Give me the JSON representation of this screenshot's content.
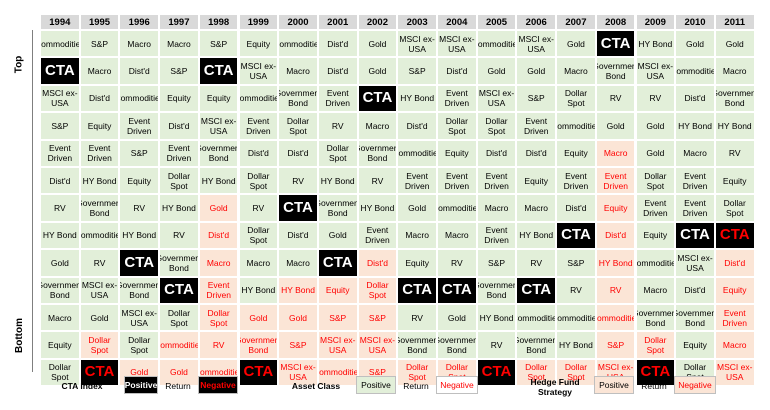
{
  "side_labels": {
    "top": "Top",
    "bottom": "Bottom"
  },
  "legend": {
    "cta_index": {
      "title": "CTA Index",
      "positive": "Positive",
      "return": "Return",
      "negative": "Negative"
    },
    "asset_class": {
      "title": "Asset Class",
      "positive": "Positive",
      "return": "Return",
      "negative": "Negative"
    },
    "hedge_fund": {
      "title": "Hedge Fund Strategy",
      "positive": "Positive",
      "return": "Return",
      "negative": "Negative"
    }
  },
  "colors": {
    "positive_bg": "#e2efd9",
    "negative_bg": "#fbe5d6",
    "negative_text": "#ff0000",
    "cta_bg": "#000000",
    "header_bg": "#d9d9d9"
  },
  "chart_data": {
    "type": "table",
    "years": [
      "1994",
      "1995",
      "1996",
      "1997",
      "1998",
      "1999",
      "2000",
      "2001",
      "2002",
      "2003",
      "2004",
      "2005",
      "2006",
      "2007",
      "2008",
      "2009",
      "2010",
      "2011"
    ],
    "codes": {
      "p": "positive return",
      "n": "negative return",
      "cp": "CTA positive",
      "cn": "CTA negative"
    },
    "columns": [
      [
        [
          "Commodities",
          "p"
        ],
        [
          "CTA",
          "cp"
        ],
        [
          "MSCI ex-USA",
          "p"
        ],
        [
          "S&P",
          "p"
        ],
        [
          "Event Driven",
          "p"
        ],
        [
          "Dist'd",
          "p"
        ],
        [
          "RV",
          "p"
        ],
        [
          "HY Bond",
          "p"
        ],
        [
          "Gold",
          "p"
        ],
        [
          "Government Bond",
          "p"
        ],
        [
          "Macro",
          "p"
        ],
        [
          "Equity",
          "p"
        ],
        [
          "Dollar Spot",
          "p"
        ]
      ],
      [
        [
          "S&P",
          "p"
        ],
        [
          "Macro",
          "p"
        ],
        [
          "Dist'd",
          "p"
        ],
        [
          "Equity",
          "p"
        ],
        [
          "Event Driven",
          "p"
        ],
        [
          "HY Bond",
          "p"
        ],
        [
          "Government Bond",
          "p"
        ],
        [
          "Commodities",
          "p"
        ],
        [
          "RV",
          "p"
        ],
        [
          "MSCI ex-USA",
          "p"
        ],
        [
          "Gold",
          "p"
        ],
        [
          "Dollar Spot",
          "n"
        ],
        [
          "CTA",
          "cn"
        ]
      ],
      [
        [
          "Macro",
          "p"
        ],
        [
          "Dist'd",
          "p"
        ],
        [
          "Commodities",
          "p"
        ],
        [
          "Event Driven",
          "p"
        ],
        [
          "S&P",
          "p"
        ],
        [
          "Equity",
          "p"
        ],
        [
          "RV",
          "p"
        ],
        [
          "HY Bond",
          "p"
        ],
        [
          "CTA",
          "cp"
        ],
        [
          "Government Bond",
          "p"
        ],
        [
          "MSCI ex-USA",
          "p"
        ],
        [
          "Dollar Spot",
          "p"
        ],
        [
          "Gold",
          "n"
        ]
      ],
      [
        [
          "Macro",
          "p"
        ],
        [
          "S&P",
          "p"
        ],
        [
          "Equity",
          "p"
        ],
        [
          "Dist'd",
          "p"
        ],
        [
          "Event Driven",
          "p"
        ],
        [
          "Dollar Spot",
          "p"
        ],
        [
          "HY Bond",
          "p"
        ],
        [
          "RV",
          "p"
        ],
        [
          "Government Bond",
          "p"
        ],
        [
          "CTA",
          "cp"
        ],
        [
          "Dollar Spot",
          "p"
        ],
        [
          "Commodities",
          "n"
        ],
        [
          "Gold",
          "n"
        ]
      ],
      [
        [
          "S&P",
          "p"
        ],
        [
          "CTA",
          "cp"
        ],
        [
          "Equity",
          "p"
        ],
        [
          "MSCI ex-USA",
          "p"
        ],
        [
          "Government Bond",
          "p"
        ],
        [
          "HY Bond",
          "p"
        ],
        [
          "Gold",
          "n"
        ],
        [
          "Dist'd",
          "n"
        ],
        [
          "Macro",
          "n"
        ],
        [
          "Event Driven",
          "n"
        ],
        [
          "Dollar Spot",
          "n"
        ],
        [
          "RV",
          "n"
        ],
        [
          "Commodities",
          "n"
        ]
      ],
      [
        [
          "Equity",
          "p"
        ],
        [
          "MSCI ex-USA",
          "p"
        ],
        [
          "Commodities",
          "p"
        ],
        [
          "Event Driven",
          "p"
        ],
        [
          "Dist'd",
          "p"
        ],
        [
          "Dollar Spot",
          "p"
        ],
        [
          "RV",
          "p"
        ],
        [
          "Dollar Spot",
          "p"
        ],
        [
          "Macro",
          "p"
        ],
        [
          "HY Bond",
          "p"
        ],
        [
          "Gold",
          "n"
        ],
        [
          "Government Bond",
          "n"
        ],
        [
          "CTA",
          "cn"
        ]
      ],
      [
        [
          "Commodities",
          "p"
        ],
        [
          "Macro",
          "p"
        ],
        [
          "Government Bond",
          "p"
        ],
        [
          "Dollar Spot",
          "p"
        ],
        [
          "Dist'd",
          "p"
        ],
        [
          "RV",
          "p"
        ],
        [
          "CTA",
          "cp"
        ],
        [
          "Dist'd",
          "p"
        ],
        [
          "Macro",
          "p"
        ],
        [
          "HY Bond",
          "n"
        ],
        [
          "Gold",
          "n"
        ],
        [
          "S&P",
          "n"
        ],
        [
          "MSCI ex-USA",
          "n"
        ]
      ],
      [
        [
          "Dist'd",
          "p"
        ],
        [
          "Dist'd",
          "p"
        ],
        [
          "Event Driven",
          "p"
        ],
        [
          "RV",
          "p"
        ],
        [
          "Dollar Spot",
          "p"
        ],
        [
          "HY Bond",
          "p"
        ],
        [
          "Government Bond",
          "p"
        ],
        [
          "Gold",
          "p"
        ],
        [
          "CTA",
          "cp"
        ],
        [
          "Equity",
          "n"
        ],
        [
          "S&P",
          "n"
        ],
        [
          "MSCI ex-USA",
          "n"
        ],
        [
          "Commodities",
          "n"
        ]
      ],
      [
        [
          "Gold",
          "p"
        ],
        [
          "Gold",
          "p"
        ],
        [
          "CTA",
          "cp"
        ],
        [
          "Macro",
          "p"
        ],
        [
          "Government Bond",
          "p"
        ],
        [
          "RV",
          "p"
        ],
        [
          "HY Bond",
          "p"
        ],
        [
          "Event Driven",
          "p"
        ],
        [
          "Dist'd",
          "n"
        ],
        [
          "Dollar Spot",
          "n"
        ],
        [
          "S&P",
          "n"
        ],
        [
          "MSCI ex-USA",
          "n"
        ],
        [
          "S&P",
          "n"
        ]
      ],
      [
        [
          "MSCI ex-USA",
          "p"
        ],
        [
          "S&P",
          "p"
        ],
        [
          "HY Bond",
          "p"
        ],
        [
          "Dist'd",
          "p"
        ],
        [
          "Commodities",
          "p"
        ],
        [
          "Event Driven",
          "p"
        ],
        [
          "Gold",
          "p"
        ],
        [
          "Macro",
          "p"
        ],
        [
          "Equity",
          "p"
        ],
        [
          "CTA",
          "cp"
        ],
        [
          "RV",
          "p"
        ],
        [
          "Government Bond",
          "p"
        ],
        [
          "Dollar Spot",
          "n"
        ]
      ],
      [
        [
          "MSCI ex-USA",
          "p"
        ],
        [
          "Dist'd",
          "p"
        ],
        [
          "Event Driven",
          "p"
        ],
        [
          "Dollar Spot",
          "p"
        ],
        [
          "Equity",
          "p"
        ],
        [
          "Event Driven",
          "p"
        ],
        [
          "Commodities",
          "p"
        ],
        [
          "Macro",
          "p"
        ],
        [
          "RV",
          "p"
        ],
        [
          "CTA",
          "cp"
        ],
        [
          "Gold",
          "p"
        ],
        [
          "Government Bond",
          "p"
        ],
        [
          "Dollar Spot",
          "n"
        ]
      ],
      [
        [
          "Commodities",
          "p"
        ],
        [
          "Gold",
          "p"
        ],
        [
          "MSCI ex-USA",
          "p"
        ],
        [
          "Dollar Spot",
          "p"
        ],
        [
          "Dist'd",
          "p"
        ],
        [
          "Event Driven",
          "p"
        ],
        [
          "Macro",
          "p"
        ],
        [
          "Event Driven",
          "p"
        ],
        [
          "S&P",
          "p"
        ],
        [
          "Government Bond",
          "p"
        ],
        [
          "HY Bond",
          "p"
        ],
        [
          "RV",
          "p"
        ],
        [
          "CTA",
          "cn"
        ]
      ],
      [
        [
          "MSCI ex-USA",
          "p"
        ],
        [
          "Gold",
          "p"
        ],
        [
          "S&P",
          "p"
        ],
        [
          "Event Driven",
          "p"
        ],
        [
          "Dist'd",
          "p"
        ],
        [
          "Equity",
          "p"
        ],
        [
          "Macro",
          "p"
        ],
        [
          "HY Bond",
          "p"
        ],
        [
          "RV",
          "p"
        ],
        [
          "CTA",
          "cp"
        ],
        [
          "Commodities",
          "p"
        ],
        [
          "Government Bond",
          "p"
        ],
        [
          "Dollar Spot",
          "n"
        ]
      ],
      [
        [
          "Gold",
          "p"
        ],
        [
          "Macro",
          "p"
        ],
        [
          "Dollar Spot",
          "p"
        ],
        [
          "Commodities",
          "p"
        ],
        [
          "Equity",
          "p"
        ],
        [
          "Event Driven",
          "p"
        ],
        [
          "Dist'd",
          "p"
        ],
        [
          "CTA",
          "cp"
        ],
        [
          "S&P",
          "p"
        ],
        [
          "RV",
          "p"
        ],
        [
          "Commodities",
          "p"
        ],
        [
          "HY Bond",
          "p"
        ],
        [
          "Dollar Spot",
          "n"
        ]
      ],
      [
        [
          "CTA",
          "cp"
        ],
        [
          "Government Bond",
          "p"
        ],
        [
          "RV",
          "p"
        ],
        [
          "Gold",
          "p"
        ],
        [
          "Macro",
          "n"
        ],
        [
          "Event Driven",
          "n"
        ],
        [
          "Equity",
          "n"
        ],
        [
          "Dist'd",
          "n"
        ],
        [
          "HY Bond",
          "n"
        ],
        [
          "RV",
          "n"
        ],
        [
          "Commodities",
          "n"
        ],
        [
          "S&P",
          "n"
        ],
        [
          "MSCI ex-USA",
          "n"
        ]
      ],
      [
        [
          "HY Bond",
          "p"
        ],
        [
          "MSCI ex-USA",
          "p"
        ],
        [
          "RV",
          "p"
        ],
        [
          "Gold",
          "p"
        ],
        [
          "Gold",
          "p"
        ],
        [
          "Dollar Spot",
          "p"
        ],
        [
          "Event Driven",
          "p"
        ],
        [
          "Equity",
          "p"
        ],
        [
          "Commodities",
          "p"
        ],
        [
          "Macro",
          "p"
        ],
        [
          "Government Bond",
          "p"
        ],
        [
          "Dollar Spot",
          "n"
        ],
        [
          "CTA",
          "cn"
        ]
      ],
      [
        [
          "Gold",
          "p"
        ],
        [
          "Commodities",
          "p"
        ],
        [
          "Dist'd",
          "p"
        ],
        [
          "HY Bond",
          "p"
        ],
        [
          "Macro",
          "p"
        ],
        [
          "Event Driven",
          "p"
        ],
        [
          "Event Driven",
          "p"
        ],
        [
          "CTA",
          "cp"
        ],
        [
          "MSCI ex-USA",
          "p"
        ],
        [
          "Dist'd",
          "p"
        ],
        [
          "Government Bond",
          "p"
        ],
        [
          "Equity",
          "p"
        ],
        [
          "Dollar Spot",
          "p"
        ]
      ],
      [
        [
          "Gold",
          "p"
        ],
        [
          "Macro",
          "p"
        ],
        [
          "Government Bond",
          "p"
        ],
        [
          "HY Bond",
          "p"
        ],
        [
          "RV",
          "p"
        ],
        [
          "Equity",
          "p"
        ],
        [
          "Dollar Spot",
          "p"
        ],
        [
          "CTA",
          "cn"
        ],
        [
          "Dist'd",
          "n"
        ],
        [
          "Equity",
          "n"
        ],
        [
          "Event Driven",
          "n"
        ],
        [
          "Macro",
          "n"
        ],
        [
          "MSCI ex-USA",
          "n"
        ]
      ]
    ]
  }
}
